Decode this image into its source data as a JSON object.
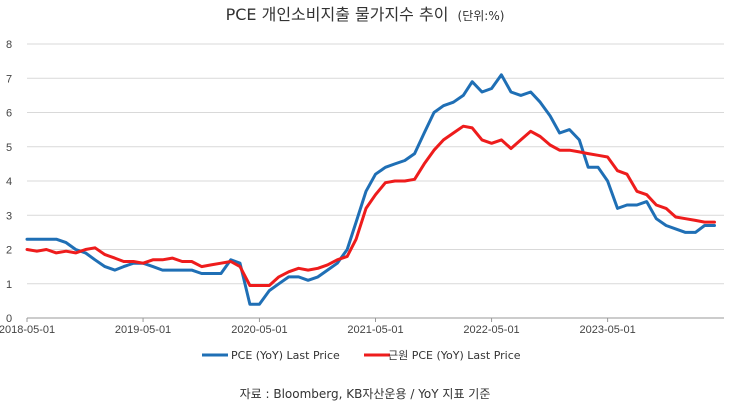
{
  "chart_data": {
    "type": "line",
    "title": "PCE 개인소비지출 물가지수 추이",
    "title_unit": "(단위:%)",
    "source": "자료 : Bloomberg, KB자산운용 / YoY 지표 기준",
    "x_start": "2018-05-01",
    "x_end": "2024-05-01",
    "x_ticks": [
      "2018-05-01",
      "2019-05-01",
      "2020-05-01",
      "2021-05-01",
      "2022-05-01",
      "2023-05-01"
    ],
    "ylim": [
      0,
      8
    ],
    "y_ticks": [
      0,
      1,
      2,
      3,
      4,
      5,
      6,
      7,
      8
    ],
    "grid": true,
    "legend_position": "bottom-center",
    "x": [
      "2018-05-01",
      "2018-06-01",
      "2018-07-01",
      "2018-08-01",
      "2018-09-01",
      "2018-10-01",
      "2018-11-01",
      "2018-12-01",
      "2019-01-01",
      "2019-02-01",
      "2019-03-01",
      "2019-04-01",
      "2019-05-01",
      "2019-06-01",
      "2019-07-01",
      "2019-08-01",
      "2019-09-01",
      "2019-10-01",
      "2019-11-01",
      "2019-12-01",
      "2020-01-01",
      "2020-02-01",
      "2020-03-01",
      "2020-04-01",
      "2020-05-01",
      "2020-06-01",
      "2020-07-01",
      "2020-08-01",
      "2020-09-01",
      "2020-10-01",
      "2020-11-01",
      "2020-12-01",
      "2021-01-01",
      "2021-02-01",
      "2021-03-01",
      "2021-04-01",
      "2021-05-01",
      "2021-06-01",
      "2021-07-01",
      "2021-08-01",
      "2021-09-01",
      "2021-10-01",
      "2021-11-01",
      "2021-12-01",
      "2022-01-01",
      "2022-02-01",
      "2022-03-01",
      "2022-04-01",
      "2022-05-01",
      "2022-06-01",
      "2022-07-01",
      "2022-08-01",
      "2022-09-01",
      "2022-10-01",
      "2022-11-01",
      "2022-12-01",
      "2023-01-01",
      "2023-02-01",
      "2023-03-01",
      "2023-04-01",
      "2023-05-01",
      "2023-06-01",
      "2023-07-01",
      "2023-08-01",
      "2023-09-01",
      "2023-10-01",
      "2023-11-01",
      "2023-12-01",
      "2024-01-01",
      "2024-02-01",
      "2024-03-01",
      "2024-04-01"
    ],
    "series": [
      {
        "name": "PCE (YoY) Last Price",
        "color": "#1f6fb5",
        "values": [
          2.3,
          2.3,
          2.3,
          2.3,
          2.2,
          2.0,
          1.9,
          1.7,
          1.5,
          1.4,
          1.5,
          1.6,
          1.6,
          1.5,
          1.4,
          1.4,
          1.4,
          1.4,
          1.3,
          1.3,
          1.3,
          1.7,
          1.6,
          0.4,
          0.4,
          0.8,
          1.0,
          1.2,
          1.2,
          1.1,
          1.2,
          1.4,
          1.6,
          2.0,
          2.8,
          3.7,
          4.2,
          4.4,
          4.5,
          4.6,
          4.8,
          5.4,
          6.0,
          6.2,
          6.3,
          6.5,
          6.9,
          6.6,
          6.7,
          7.1,
          6.6,
          6.5,
          6.6,
          6.3,
          5.9,
          5.4,
          5.5,
          5.2,
          4.4,
          4.4,
          4.0,
          3.2,
          3.3,
          3.3,
          3.4,
          2.9,
          2.7,
          2.6,
          2.5,
          2.5,
          2.7,
          2.7
        ]
      },
      {
        "name": "근원 PCE (YoY)  Last Price",
        "color": "#ee1c1c",
        "values": [
          2.0,
          1.95,
          2.0,
          1.9,
          1.95,
          1.9,
          2.0,
          2.05,
          1.85,
          1.75,
          1.65,
          1.65,
          1.6,
          1.7,
          1.7,
          1.75,
          1.65,
          1.65,
          1.5,
          1.55,
          1.6,
          1.65,
          1.5,
          0.95,
          0.95,
          0.95,
          1.2,
          1.35,
          1.45,
          1.4,
          1.45,
          1.55,
          1.7,
          1.8,
          2.3,
          3.2,
          3.6,
          3.95,
          4.0,
          4.0,
          4.05,
          4.5,
          4.9,
          5.2,
          5.4,
          5.6,
          5.55,
          5.2,
          5.1,
          5.2,
          4.95,
          5.2,
          5.45,
          5.3,
          5.05,
          4.9,
          4.9,
          4.85,
          4.8,
          4.75,
          4.7,
          4.3,
          4.2,
          3.7,
          3.6,
          3.3,
          3.2,
          2.95,
          2.9,
          2.85,
          2.8,
          2.8
        ]
      }
    ]
  }
}
